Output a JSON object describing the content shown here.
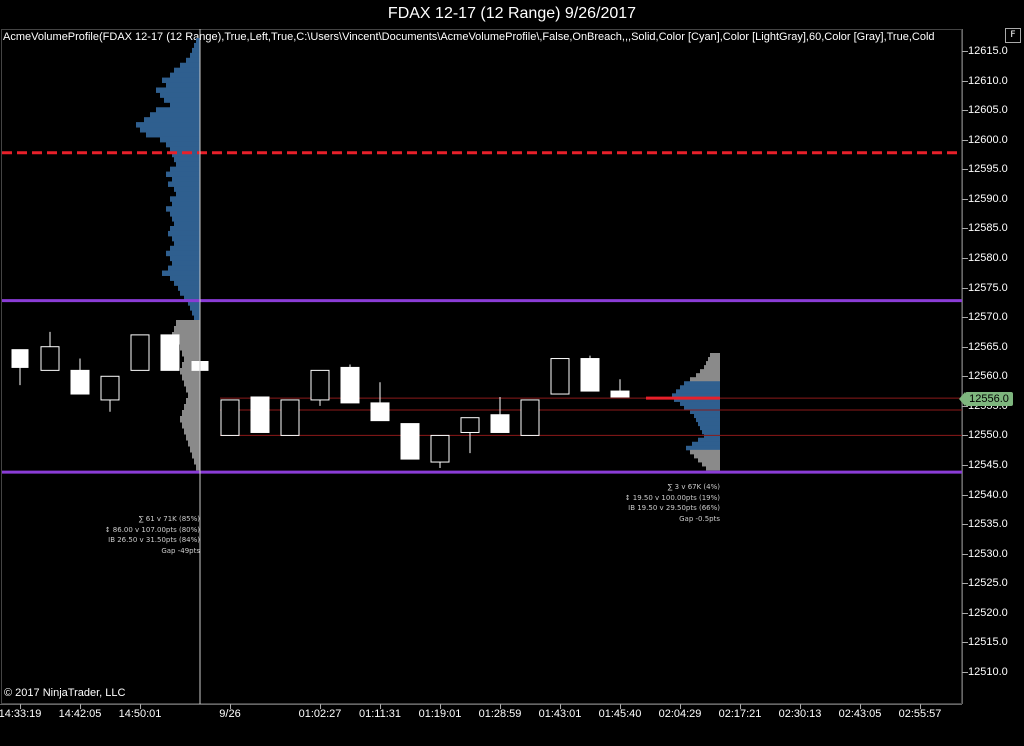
{
  "window": {
    "title": "FDAX 12-17 (12 Range)  9/26/2017",
    "button_label": "F"
  },
  "indicator_params": "AcmeVolumeProfile(FDAX 12-17 (12 Range),True,Left,True,C:\\Users\\Vincent\\Documents\\AcmeVolumeProfile\\,False,OnBreach,,,Solid,Color [Cyan],Color [LightGray],60,Color [Gray],True,Cold",
  "copyright": "© 2017 NinjaTrader, LLC",
  "colors": {
    "up_candle": "#000000",
    "down_candle": "#ffffff",
    "profile_blue": "#2f5f8f",
    "profile_gray": "#8a8a8a",
    "level_red": "#e8202a",
    "level_purple": "#8a3cd6",
    "thin_red": "#8b1a1a",
    "price_tag": "#7eb67e"
  },
  "current_price": "12556.0",
  "y_axis": {
    "labels": [
      "12615.0",
      "12610.0",
      "12605.0",
      "12600.0",
      "12595.0",
      "12590.0",
      "12585.0",
      "12580.0",
      "12575.0",
      "12570.0",
      "12565.0",
      "12560.0",
      "12555.0",
      "12550.0",
      "12545.0",
      "12540.0",
      "12535.0",
      "12530.0",
      "12525.0",
      "12520.0",
      "12515.0",
      "12510.0"
    ],
    "min": 12507,
    "max": 12618
  },
  "x_axis": {
    "labels": [
      "14:33:19",
      "14:42:05",
      "14:50:01",
      "9/26",
      "01:02:27",
      "01:11:31",
      "01:19:01",
      "01:28:59",
      "01:43:01",
      "01:45:40",
      "02:04:29",
      "02:17:21",
      "02:30:13",
      "02:43:05",
      "02:55:57"
    ]
  },
  "levels": [
    {
      "name": "dashed-red-level",
      "price": 12597.8,
      "style": "dashed"
    },
    {
      "name": "upper-purple-level",
      "price": 12572.8,
      "style": "solid"
    },
    {
      "name": "lower-purple-level",
      "price": 12543.8,
      "style": "solid"
    }
  ],
  "profile_left_stats": [
    "∑ 61 v 71K (85%)",
    "↕ 86.00 v 107.00pts (80%)",
    "IB 26.50 v 31.50pts (84%)",
    "Gap -49pts"
  ],
  "profile_right_stats": [
    "∑ 3 v 67K (4%)",
    "↕ 19.50 v 100.00pts (19%)",
    "IB 19.50 v 29.50pts (66%)",
    "Gap -0.5pts"
  ],
  "candles": [
    {
      "open": 12564.5,
      "close": 12561.5,
      "high": 12564.5,
      "low": 12558.5
    },
    {
      "open": 12561,
      "close": 12565,
      "high": 12567.5,
      "low": 12561
    },
    {
      "open": 12561,
      "close": 12557,
      "high": 12563,
      "low": 12557
    },
    {
      "open": 12556,
      "close": 12560,
      "high": 12560,
      "low": 12554
    },
    {
      "open": 12561,
      "close": 12567,
      "high": 12567,
      "low": 12561
    },
    {
      "open": 12567,
      "close": 12561,
      "high": 12567,
      "low": 12561
    },
    {
      "open": 12562.5,
      "close": 12561,
      "high": 12562.5,
      "low": 12561
    },
    {
      "open": 12550,
      "close": 12556,
      "high": 12556,
      "low": 12550
    },
    {
      "open": 12556.5,
      "close": 12550.5,
      "high": 12556.5,
      "low": 12550.5
    },
    {
      "open": 12550,
      "close": 12556,
      "high": 12556,
      "low": 12550
    },
    {
      "open": 12556,
      "close": 12561,
      "high": 12561,
      "low": 12555
    },
    {
      "open": 12561.5,
      "close": 12555.5,
      "high": 12562,
      "low": 12555.5
    },
    {
      "open": 12555.5,
      "close": 12552.5,
      "high": 12559,
      "low": 12552.5
    },
    {
      "open": 12552,
      "close": 12546,
      "high": 12552,
      "low": 12546
    },
    {
      "open": 12545.5,
      "close": 12550,
      "high": 12550,
      "low": 12544.5
    },
    {
      "open": 12550.5,
      "close": 12553,
      "high": 12553,
      "low": 12547
    },
    {
      "open": 12553.5,
      "close": 12550.5,
      "high": 12556.5,
      "low": 12550.5
    },
    {
      "open": 12550,
      "close": 12556,
      "high": 12556,
      "low": 12550
    },
    {
      "open": 12557,
      "close": 12563,
      "high": 12563,
      "low": 12557
    },
    {
      "open": 12563,
      "close": 12557.5,
      "high": 12563.5,
      "low": 12557.5
    },
    {
      "open": 12557.5,
      "close": 12556.5,
      "high": 12559.5,
      "low": 12556.5
    }
  ]
}
